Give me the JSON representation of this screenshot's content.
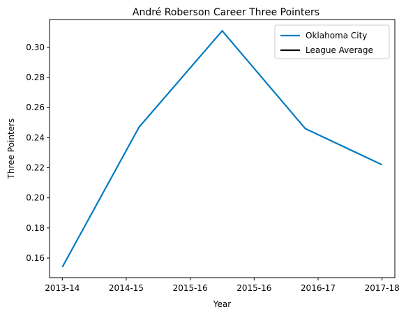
{
  "chart_data": {
    "type": "line",
    "title": "André Roberson Career Three Pointers",
    "xlabel": "Year",
    "ylabel": "Three Pointers",
    "x": [
      0,
      1,
      2,
      3,
      4,
      5
    ],
    "xlim": [
      -0.2,
      5.2
    ],
    "xticks": [
      0,
      1,
      2,
      3,
      4,
      5
    ],
    "xtick_labels": [
      "2013-14",
      "2014-15",
      "2015-16",
      "2015-16",
      "2016-17",
      "2017-18"
    ],
    "ylim": [
      0.147,
      0.3185
    ],
    "yticks": [
      0.16,
      0.18,
      0.2,
      0.22,
      0.24,
      0.26,
      0.28,
      0.3
    ],
    "ytick_labels": [
      "0.16",
      "0.18",
      "0.20",
      "0.22",
      "0.24",
      "0.26",
      "0.28",
      "0.30"
    ],
    "grid": false,
    "legend_position": "top-right",
    "series": [
      {
        "name": "Oklahoma City",
        "color": "#007ac1",
        "points": [
          {
            "x": 0,
            "y": 0.154
          },
          {
            "x": 1.2,
            "y": 0.247
          },
          {
            "x": 2.5,
            "y": 0.311
          },
          {
            "x": 3.8,
            "y": 0.246
          },
          {
            "x": 5,
            "y": 0.222
          }
        ]
      },
      {
        "name": "League Average",
        "color": "#000000",
        "points": []
      }
    ]
  }
}
